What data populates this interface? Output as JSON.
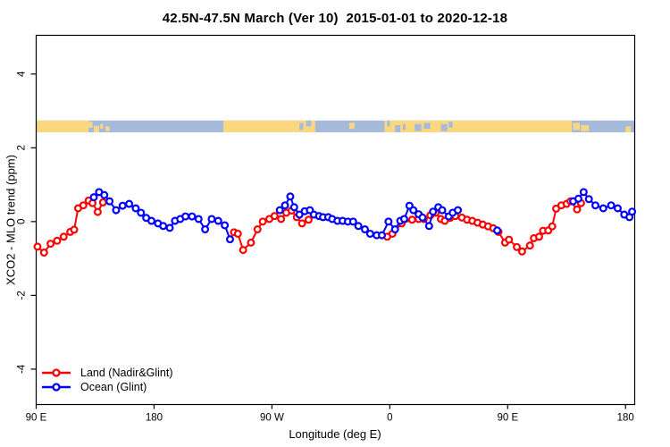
{
  "title": "42.5N-47.5N March (Ver 10)  2015-01-01 to 2020-12-18",
  "legend": {
    "items": [
      {
        "label": "Land (Nadir&Glint)",
        "color": "#FF0000"
      },
      {
        "label": "Ocean (Glint)",
        "color": "#0000FF"
      }
    ]
  },
  "chart_data": {
    "type": "line",
    "title": "42.5N-47.5N March (Ver 10)  2015-01-01 to 2020-12-18",
    "xlabel": "Longitude (deg E)",
    "ylabel": "XCO2 - MLO trend (ppm)",
    "xlim": [
      90,
      547
    ],
    "ylim": [
      -4.96,
      5.05
    ],
    "grid": false,
    "legend_position": "bottom-left",
    "x_ticks": [
      {
        "lon": 90,
        "label": "90 E"
      },
      {
        "lon": 180,
        "label": "180"
      },
      {
        "lon": 270,
        "label": "90 W"
      },
      {
        "lon": 360,
        "label": "0"
      },
      {
        "lon": 450,
        "label": "90 E"
      },
      {
        "lon": 540,
        "label": "180"
      }
    ],
    "y_ticks": [
      {
        "v": 4,
        "label": "4"
      },
      {
        "v": 2,
        "label": "2"
      },
      {
        "v": 0,
        "label": "0"
      },
      {
        "v": -2,
        "label": "-2"
      },
      {
        "v": -4,
        "label": "-4"
      }
    ],
    "map_band": {
      "comment_visible": "latitude-band world-map strip drawn across the plot near y=2.6 ppm",
      "top_value": 2.74,
      "bottom_value": 2.42,
      "extent": [
        90,
        547
      ],
      "ocean_color": "#A6BBDB",
      "land_color": "#FBD880",
      "land_segments": [
        [
          90,
          130
        ],
        [
          233,
          303
        ],
        [
          356,
          499
        ]
      ],
      "specks": [
        [
          130,
          133,
          0.1,
          0.6,
          "land"
        ],
        [
          134,
          138,
          0.45,
          1.0,
          "land"
        ],
        [
          139,
          141,
          0.3,
          0.7,
          "land"
        ],
        [
          143,
          146,
          0.5,
          0.9,
          "land"
        ],
        [
          291,
          294,
          0.2,
          0.8,
          "ocean"
        ],
        [
          296,
          300,
          0.0,
          0.5,
          "ocean"
        ],
        [
          329,
          333,
          0.2,
          0.7,
          "land"
        ],
        [
          358,
          360,
          0.0,
          0.5,
          "ocean"
        ],
        [
          364,
          368,
          0.4,
          1.0,
          "ocean"
        ],
        [
          370,
          372,
          0.3,
          0.8,
          "ocean"
        ],
        [
          379,
          384,
          0.3,
          0.9,
          "ocean"
        ],
        [
          386,
          391,
          0.2,
          0.7,
          "ocean"
        ],
        [
          399,
          404,
          0.3,
          0.9,
          "ocean"
        ],
        [
          405,
          408,
          0.1,
          0.6,
          "ocean"
        ],
        [
          500,
          505,
          0.2,
          0.8,
          "land"
        ],
        [
          506,
          512,
          0.4,
          0.9,
          "land"
        ],
        [
          540,
          544,
          0.5,
          1.0,
          "land"
        ]
      ]
    },
    "series": [
      {
        "name": "Land (Nadir&Glint)",
        "color": "#FF0000",
        "marker": "open-circle",
        "segments": [
          [
            [
              91,
              -0.68
            ],
            [
              96,
              -0.84
            ],
            [
              101,
              -0.6
            ],
            [
              106,
              -0.52
            ],
            [
              111,
              -0.41
            ],
            [
              116,
              -0.28
            ],
            [
              119,
              -0.22
            ],
            [
              122,
              0.36
            ],
            [
              126,
              0.44
            ],
            [
              130,
              0.57
            ],
            [
              133,
              0.5
            ],
            [
              137,
              0.26
            ],
            [
              141,
              0.52
            ]
          ],
          [
            [
              241,
              -0.29
            ],
            [
              244,
              -0.33
            ],
            [
              248,
              -0.77
            ],
            [
              254,
              -0.57
            ],
            [
              259,
              -0.21
            ],
            [
              263,
              0.0
            ],
            [
              268,
              0.07
            ],
            [
              272,
              0.15
            ],
            [
              277,
              0.07
            ],
            [
              281,
              0.24
            ],
            [
              285,
              0.3
            ],
            [
              289,
              0.12
            ],
            [
              293,
              -0.05
            ],
            [
              298,
              0.05
            ]
          ],
          [
            [
              358,
              -0.41
            ],
            [
              362,
              -0.33
            ],
            [
              369,
              -0.05
            ],
            [
              377,
              0.05
            ],
            [
              382,
              0.07
            ],
            [
              386,
              0.07
            ],
            [
              391,
              0.17
            ],
            [
              395,
              0.24
            ],
            [
              399,
              0.07
            ],
            [
              402,
              0.02
            ],
            [
              406,
              0.1
            ],
            [
              410,
              0.15
            ],
            [
              415,
              0.11
            ],
            [
              419,
              0.05
            ],
            [
              423,
              0.02
            ],
            [
              427,
              -0.03
            ],
            [
              431,
              -0.08
            ],
            [
              435,
              -0.13
            ],
            [
              439,
              -0.18
            ],
            [
              443,
              -0.28
            ],
            [
              448,
              -0.57
            ],
            [
              451,
              -0.49
            ],
            [
              457,
              -0.69
            ],
            [
              461,
              -0.81
            ],
            [
              467,
              -0.65
            ],
            [
              470,
              -0.45
            ],
            [
              474,
              -0.41
            ],
            [
              477,
              -0.25
            ],
            [
              481,
              -0.24
            ],
            [
              484,
              -0.13
            ],
            [
              487,
              0.35
            ],
            [
              491,
              0.44
            ],
            [
              495,
              0.48
            ],
            [
              498,
              0.55
            ],
            [
              503,
              0.33
            ],
            [
              506,
              0.5
            ]
          ]
        ]
      },
      {
        "name": "Ocean (Glint)",
        "color": "#0000FF",
        "marker": "open-circle",
        "segments": [
          [
            [
              134,
              0.66
            ],
            [
              138,
              0.8
            ],
            [
              142,
              0.72
            ],
            [
              146,
              0.55
            ],
            [
              151,
              0.31
            ],
            [
              156,
              0.43
            ],
            [
              161,
              0.48
            ],
            [
              166,
              0.36
            ],
            [
              170,
              0.24
            ],
            [
              174,
              0.1
            ],
            [
              178,
              0.02
            ],
            [
              183,
              -0.05
            ],
            [
              187,
              -0.12
            ],
            [
              192,
              -0.17
            ],
            [
              196,
              0.02
            ],
            [
              200,
              0.07
            ],
            [
              204,
              0.14
            ],
            [
              209,
              0.14
            ],
            [
              214,
              0.07
            ],
            [
              219,
              -0.21
            ],
            [
              224,
              0.07
            ],
            [
              229,
              0.02
            ],
            [
              234,
              -0.1
            ],
            [
              238,
              -0.48
            ]
          ],
          [
            [
              276,
              0.31
            ],
            [
              280,
              0.44
            ],
            [
              284,
              0.68
            ],
            [
              287,
              0.39
            ],
            [
              291,
              0.19
            ],
            [
              295,
              0.28
            ],
            [
              299,
              0.31
            ],
            [
              302,
              0.19
            ],
            [
              306,
              0.15
            ],
            [
              309,
              0.12
            ],
            [
              313,
              0.12
            ],
            [
              316,
              0.07
            ],
            [
              320,
              0.02
            ],
            [
              324,
              0.02
            ],
            [
              328,
              0.0
            ],
            [
              332,
              0.0
            ],
            [
              336,
              -0.12
            ],
            [
              341,
              -0.21
            ],
            [
              345,
              -0.33
            ],
            [
              350,
              -0.37
            ],
            [
              354,
              -0.37
            ],
            [
              359,
              0.0
            ],
            [
              364,
              -0.21
            ],
            [
              368,
              0.02
            ],
            [
              371,
              0.07
            ],
            [
              375,
              0.43
            ],
            [
              378,
              0.31
            ],
            [
              382,
              0.2
            ],
            [
              385,
              0.11
            ],
            [
              390,
              -0.12
            ],
            [
              393,
              0.27
            ],
            [
              397,
              0.39
            ],
            [
              400,
              0.31
            ],
            [
              405,
              0.14
            ],
            [
              408,
              0.24
            ],
            [
              412,
              0.31
            ]
          ],
          [
            [
              442,
              -0.24
            ]
          ],
          [
            [
              500,
              0.55
            ],
            [
              504,
              0.62
            ],
            [
              508,
              0.8
            ],
            [
              512,
              0.61
            ],
            [
              517,
              0.44
            ],
            [
              523,
              0.36
            ],
            [
              529,
              0.44
            ],
            [
              534,
              0.36
            ],
            [
              539,
              0.19
            ],
            [
              543,
              0.12
            ],
            [
              545,
              0.27
            ]
          ]
        ]
      }
    ]
  }
}
